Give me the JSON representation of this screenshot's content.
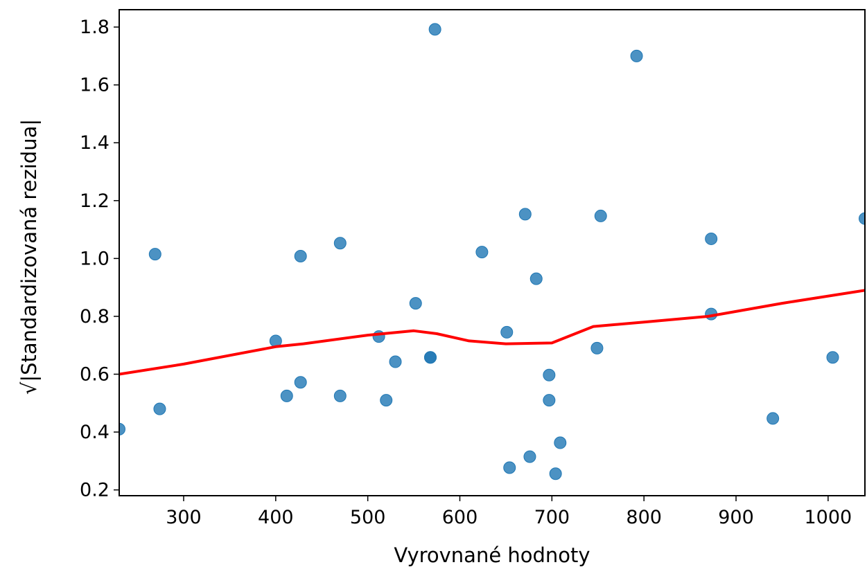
{
  "chart_data": {
    "type": "scatter",
    "title": "",
    "xlabel": "Vyrovnané hodnoty",
    "ylabel": "√|Standardizovaná rezidua|",
    "xlim": [
      230,
      1040
    ],
    "ylim": [
      0.18,
      1.86
    ],
    "xticks": [
      300,
      400,
      500,
      600,
      700,
      800,
      900,
      1000
    ],
    "yticks": [
      0.2,
      0.4,
      0.6,
      0.8,
      1.0,
      1.2,
      1.4,
      1.6,
      1.8
    ],
    "ytick_labels": [
      "0.2",
      "0.4",
      "0.6",
      "0.8",
      "1.0",
      "1.2",
      "1.4",
      "1.6",
      "1.8"
    ],
    "grid": false,
    "points_color": "#1f77b4",
    "trend_color": "#ff0000",
    "points": [
      {
        "x": 230,
        "y": 0.41
      },
      {
        "x": 269,
        "y": 1.015
      },
      {
        "x": 274,
        "y": 0.48
      },
      {
        "x": 400,
        "y": 0.715
      },
      {
        "x": 412,
        "y": 0.525
      },
      {
        "x": 427,
        "y": 1.008
      },
      {
        "x": 427,
        "y": 0.572
      },
      {
        "x": 470,
        "y": 1.053
      },
      {
        "x": 470,
        "y": 0.525
      },
      {
        "x": 512,
        "y": 0.73
      },
      {
        "x": 520,
        "y": 0.51
      },
      {
        "x": 530,
        "y": 0.643
      },
      {
        "x": 552,
        "y": 0.845
      },
      {
        "x": 568,
        "y": 0.658
      },
      {
        "x": 568,
        "y": 0.658
      },
      {
        "x": 573,
        "y": 1.792
      },
      {
        "x": 624,
        "y": 1.022
      },
      {
        "x": 651,
        "y": 0.745
      },
      {
        "x": 654,
        "y": 0.277
      },
      {
        "x": 671,
        "y": 1.153
      },
      {
        "x": 676,
        "y": 0.315
      },
      {
        "x": 683,
        "y": 0.93
      },
      {
        "x": 697,
        "y": 0.597
      },
      {
        "x": 697,
        "y": 0.51
      },
      {
        "x": 704,
        "y": 0.256
      },
      {
        "x": 709,
        "y": 0.363
      },
      {
        "x": 749,
        "y": 0.69
      },
      {
        "x": 753,
        "y": 1.147
      },
      {
        "x": 792,
        "y": 1.7
      },
      {
        "x": 873,
        "y": 1.068
      },
      {
        "x": 873,
        "y": 0.808
      },
      {
        "x": 940,
        "y": 0.447
      },
      {
        "x": 1005,
        "y": 0.658
      },
      {
        "x": 1040,
        "y": 1.138
      }
    ],
    "trend_line": [
      {
        "x": 230,
        "y": 0.6
      },
      {
        "x": 300,
        "y": 0.635
      },
      {
        "x": 400,
        "y": 0.695
      },
      {
        "x": 430,
        "y": 0.705
      },
      {
        "x": 500,
        "y": 0.735
      },
      {
        "x": 550,
        "y": 0.75
      },
      {
        "x": 575,
        "y": 0.74
      },
      {
        "x": 610,
        "y": 0.715
      },
      {
        "x": 650,
        "y": 0.705
      },
      {
        "x": 700,
        "y": 0.708
      },
      {
        "x": 745,
        "y": 0.765
      },
      {
        "x": 800,
        "y": 0.78
      },
      {
        "x": 870,
        "y": 0.8
      },
      {
        "x": 950,
        "y": 0.845
      },
      {
        "x": 1040,
        "y": 0.89
      }
    ]
  }
}
